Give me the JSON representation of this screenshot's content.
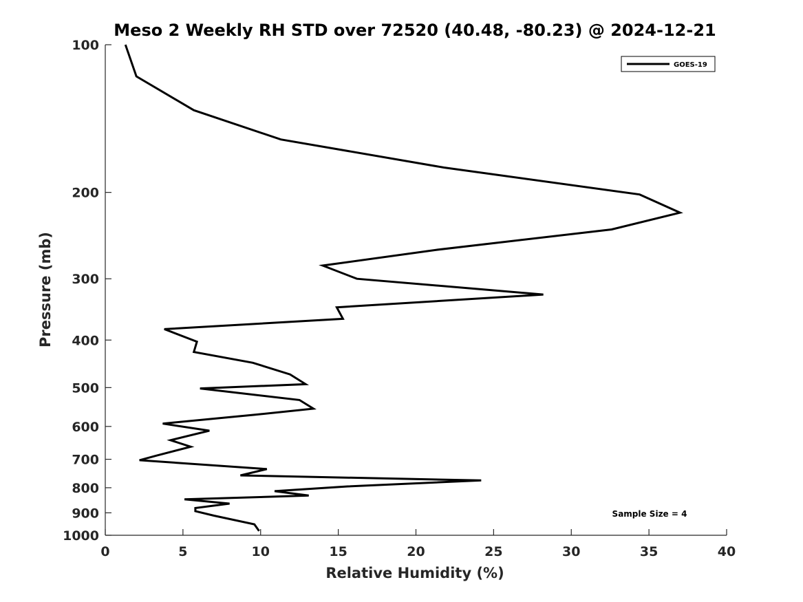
{
  "chart_data": {
    "type": "line",
    "title": "Meso 2 Weekly RH STD over 72520 (40.48, -80.23) @ 2024-12-21",
    "xlabel": "Relative Humidity (%)",
    "ylabel": "Pressure (mb)",
    "xlim": [
      0,
      40
    ],
    "ylim": [
      100,
      1000
    ],
    "yscale": "log",
    "y_reversed": true,
    "grid": false,
    "x_ticks": [
      0,
      5,
      10,
      15,
      20,
      25,
      30,
      35,
      40
    ],
    "y_ticks": [
      100,
      200,
      300,
      400,
      500,
      600,
      700,
      800,
      900,
      1000
    ],
    "legend": {
      "position": "top-right",
      "entries": [
        "GOES-19"
      ]
    },
    "annotation": "Sample Size = 4",
    "series": [
      {
        "name": "GOES-19",
        "color": "#000000",
        "x": [
          1.3,
          2.0,
          5.7,
          11.3,
          21.8,
          34.4,
          37.0,
          32.6,
          21.3,
          14.0,
          16.2,
          28.2,
          14.9,
          15.3,
          3.8,
          5.9,
          5.7,
          9.5,
          11.9,
          12.9,
          6.1,
          12.5,
          13.4,
          9.6,
          3.7,
          6.7,
          4.2,
          5.5,
          3.3,
          2.2,
          10.4,
          8.7,
          24.2,
          15.6,
          10.9,
          13.1,
          5.1,
          8.0,
          5.8,
          5.8,
          7.0,
          9.6,
          9.9
        ],
        "y": [
          100,
          116,
          136,
          156,
          178,
          202,
          220,
          238,
          262,
          282,
          300,
          323,
          343,
          362,
          380,
          403,
          423,
          445,
          470,
          492,
          502,
          530,
          552,
          568,
          592,
          612,
          640,
          660,
          688,
          703,
          733,
          755,
          773,
          795,
          813,
          830,
          845,
          862,
          880,
          893,
          912,
          950,
          980
        ]
      }
    ]
  }
}
